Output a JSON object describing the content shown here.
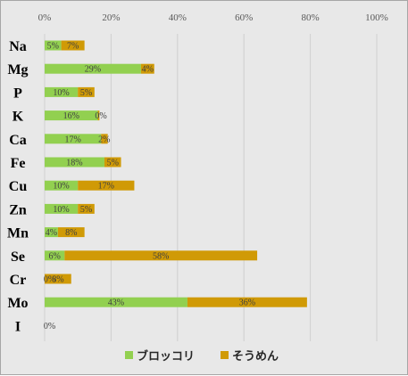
{
  "chart_data": {
    "type": "bar",
    "orientation": "horizontal",
    "stacked": true,
    "categories": [
      "Na",
      "Mg",
      "P",
      "K",
      "Ca",
      "Fe",
      "Cu",
      "Zn",
      "Mn",
      "Se",
      "Cr",
      "Mo",
      "I"
    ],
    "series": [
      {
        "name": "ブロッコリ",
        "color": "#92d050",
        "values": [
          5,
          29,
          10,
          16,
          17,
          18,
          10,
          10,
          4,
          6,
          0,
          43,
          0
        ],
        "labels": [
          "5%",
          "29%",
          "10%",
          "16%",
          "17%",
          "18%",
          "10%",
          "10%",
          "4%",
          "6%",
          "0%",
          "43%",
          "0%"
        ]
      },
      {
        "name": "そうめん",
        "color": "#d09a06",
        "values": [
          7,
          4,
          5,
          0.5,
          2,
          5,
          17,
          5,
          8,
          58,
          8,
          36,
          null
        ],
        "labels": [
          "7%",
          "4%",
          "5%",
          "0%",
          "2%",
          "5%",
          "17%",
          "5%",
          "8%",
          "58%",
          "8%",
          "36%",
          null
        ]
      }
    ],
    "xlim": [
      0,
      100
    ],
    "x_ticks": [
      "0%",
      "20%",
      "40%",
      "60%",
      "80%",
      "100%"
    ],
    "x_tick_values": [
      0,
      20,
      40,
      60,
      80,
      100
    ],
    "x_axis_position": "top",
    "grid": true,
    "legend_position": "bottom"
  }
}
